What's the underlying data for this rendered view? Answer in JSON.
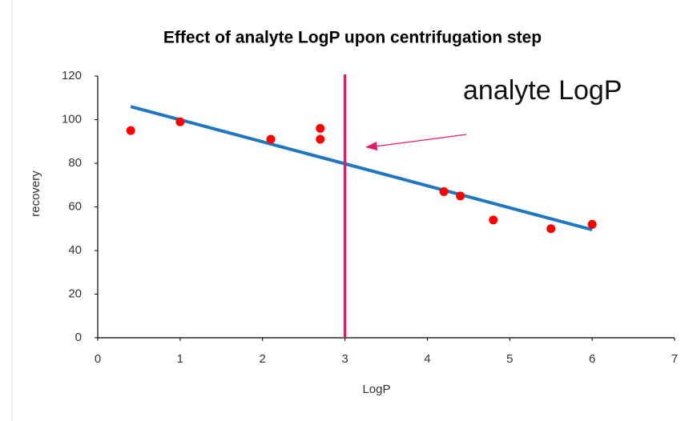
{
  "chart_data": {
    "type": "scatter",
    "title": "Effect of analyte LogP upon centrifugation step",
    "x_label": "LogP",
    "y_label": "recovery",
    "series": [
      {
        "name": "recovery",
        "color": "#ff0000",
        "x": [
          0.4,
          1,
          2.1,
          2.7,
          2.7,
          4.2,
          4.4,
          4.8,
          5.5,
          6
        ],
        "values": [
          95,
          99,
          91,
          96,
          91,
          67,
          65,
          54,
          50,
          52
        ]
      }
    ],
    "trendline": {
      "color": "#1f77c0",
      "x": [
        0.4,
        6
      ],
      "values": [
        106,
        49.5
      ]
    },
    "reference_line": {
      "x": 3,
      "color": "#e8186e"
    },
    "annotation": {
      "text": "analyte LogP",
      "color": "#e8186e"
    },
    "xlim": [
      0,
      7
    ],
    "xticks": [
      0,
      1,
      2,
      3,
      4,
      5,
      6,
      7
    ],
    "ylim": [
      0,
      120
    ],
    "yticks": [
      0,
      20,
      40,
      60,
      80,
      100,
      120
    ]
  }
}
